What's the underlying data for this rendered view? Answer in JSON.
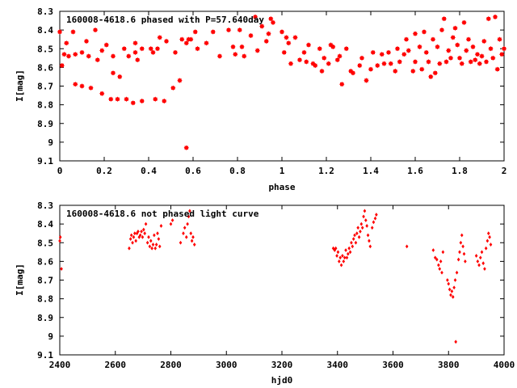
{
  "chart_data": [
    {
      "type": "scatter",
      "title": "160008-4618.6 phased with P=57.640day",
      "xlabel": "phase",
      "ylabel": "I[mag]",
      "xlim": [
        0,
        2
      ],
      "ylim": [
        8.3,
        9.1
      ],
      "y_inverted": true,
      "x_ticks": [
        "0",
        "0.2",
        "0.4",
        "0.6",
        "0.8",
        "1",
        "1.2",
        "1.4",
        "1.6",
        "1.8",
        "2"
      ],
      "y_ticks": [
        "8.3",
        "8.4",
        "8.5",
        "8.6",
        "8.7",
        "8.8",
        "8.9",
        "9",
        "9.1"
      ],
      "grid": false,
      "color": "#ff0000",
      "series": [
        {
          "points": [
            [
              0.0,
              8.41
            ],
            [
              0.01,
              8.59
            ],
            [
              0.02,
              8.53
            ],
            [
              0.03,
              8.47
            ],
            [
              0.04,
              8.54
            ],
            [
              0.06,
              8.41
            ],
            [
              0.07,
              8.53
            ],
            [
              0.07,
              8.69
            ],
            [
              0.1,
              8.7
            ],
            [
              0.1,
              8.52
            ],
            [
              0.12,
              8.46
            ],
            [
              0.13,
              8.54
            ],
            [
              0.14,
              8.71
            ],
            [
              0.16,
              8.4
            ],
            [
              0.17,
              8.56
            ],
            [
              0.19,
              8.51
            ],
            [
              0.19,
              8.74
            ],
            [
              0.21,
              8.48
            ],
            [
              0.23,
              8.77
            ],
            [
              0.24,
              8.54
            ],
            [
              0.24,
              8.63
            ],
            [
              0.26,
              8.77
            ],
            [
              0.27,
              8.65
            ],
            [
              0.29,
              8.5
            ],
            [
              0.3,
              8.77
            ],
            [
              0.31,
              8.54
            ],
            [
              0.33,
              8.79
            ],
            [
              0.34,
              8.47
            ],
            [
              0.34,
              8.52
            ],
            [
              0.35,
              8.56
            ],
            [
              0.37,
              8.78
            ],
            [
              0.37,
              8.5
            ],
            [
              0.41,
              8.5
            ],
            [
              0.42,
              8.52
            ],
            [
              0.43,
              8.77
            ],
            [
              0.44,
              8.5
            ],
            [
              0.45,
              8.44
            ],
            [
              0.47,
              8.78
            ],
            [
              0.48,
              8.46
            ],
            [
              0.51,
              8.71
            ],
            [
              0.52,
              8.52
            ],
            [
              0.54,
              8.67
            ],
            [
              0.55,
              8.45
            ],
            [
              0.57,
              8.47
            ],
            [
              0.57,
              9.03
            ],
            [
              0.58,
              8.45
            ],
            [
              0.59,
              8.45
            ],
            [
              0.61,
              8.41
            ],
            [
              0.62,
              8.5
            ],
            [
              0.66,
              8.47
            ],
            [
              0.69,
              8.41
            ],
            [
              0.72,
              8.54
            ],
            [
              0.76,
              8.4
            ],
            [
              0.78,
              8.49
            ],
            [
              0.79,
              8.53
            ],
            [
              0.81,
              8.4
            ],
            [
              0.82,
              8.49
            ],
            [
              0.83,
              8.54
            ],
            [
              0.86,
              8.43
            ],
            [
              0.88,
              8.33
            ],
            [
              0.89,
              8.51
            ],
            [
              0.91,
              8.38
            ],
            [
              0.93,
              8.46
            ],
            [
              0.94,
              8.42
            ],
            [
              0.95,
              8.34
            ],
            [
              0.96,
              8.36
            ],
            [
              1.0,
              8.41
            ],
            [
              1.01,
              8.52
            ],
            [
              1.02,
              8.44
            ],
            [
              1.03,
              8.47
            ],
            [
              1.04,
              8.58
            ],
            [
              1.06,
              8.44
            ],
            [
              1.08,
              8.56
            ],
            [
              1.1,
              8.52
            ],
            [
              1.11,
              8.57
            ],
            [
              1.12,
              8.48
            ],
            [
              1.14,
              8.58
            ],
            [
              1.15,
              8.59
            ],
            [
              1.17,
              8.5
            ],
            [
              1.18,
              8.62
            ],
            [
              1.19,
              8.55
            ],
            [
              1.21,
              8.58
            ],
            [
              1.22,
              8.48
            ],
            [
              1.23,
              8.49
            ],
            [
              1.25,
              8.56
            ],
            [
              1.26,
              8.54
            ],
            [
              1.27,
              8.69
            ],
            [
              1.29,
              8.5
            ],
            [
              1.31,
              8.62
            ],
            [
              1.32,
              8.63
            ],
            [
              1.35,
              8.59
            ],
            [
              1.36,
              8.55
            ],
            [
              1.38,
              8.67
            ],
            [
              1.4,
              8.61
            ],
            [
              1.41,
              8.52
            ],
            [
              1.43,
              8.59
            ],
            [
              1.45,
              8.53
            ],
            [
              1.46,
              8.58
            ],
            [
              1.48,
              8.52
            ],
            [
              1.49,
              8.58
            ],
            [
              1.51,
              8.62
            ],
            [
              1.52,
              8.5
            ],
            [
              1.53,
              8.57
            ],
            [
              1.55,
              8.53
            ],
            [
              1.56,
              8.45
            ],
            [
              1.57,
              8.51
            ],
            [
              1.59,
              8.62
            ],
            [
              1.6,
              8.57
            ],
            [
              1.6,
              8.42
            ],
            [
              1.62,
              8.49
            ],
            [
              1.63,
              8.61
            ],
            [
              1.64,
              8.41
            ],
            [
              1.65,
              8.52
            ],
            [
              1.66,
              8.57
            ],
            [
              1.67,
              8.65
            ],
            [
              1.68,
              8.45
            ],
            [
              1.69,
              8.63
            ],
            [
              1.7,
              8.49
            ],
            [
              1.71,
              8.58
            ],
            [
              1.72,
              8.4
            ],
            [
              1.73,
              8.34
            ],
            [
              1.74,
              8.57
            ],
            [
              1.75,
              8.51
            ],
            [
              1.76,
              8.55
            ],
            [
              1.77,
              8.44
            ],
            [
              1.78,
              8.39
            ],
            [
              1.79,
              8.48
            ],
            [
              1.8,
              8.55
            ],
            [
              1.81,
              8.58
            ],
            [
              1.82,
              8.36
            ],
            [
              1.83,
              8.51
            ],
            [
              1.84,
              8.45
            ],
            [
              1.85,
              8.57
            ],
            [
              1.86,
              8.49
            ],
            [
              1.87,
              8.56
            ],
            [
              1.88,
              8.53
            ],
            [
              1.89,
              8.58
            ],
            [
              1.9,
              8.54
            ],
            [
              1.91,
              8.46
            ],
            [
              1.92,
              8.57
            ],
            [
              1.93,
              8.34
            ],
            [
              1.94,
              8.5
            ],
            [
              1.95,
              8.55
            ],
            [
              1.96,
              8.33
            ],
            [
              1.97,
              8.61
            ],
            [
              1.98,
              8.45
            ],
            [
              1.99,
              8.53
            ],
            [
              2.0,
              8.5
            ]
          ]
        }
      ]
    },
    {
      "type": "scatter",
      "title": "160008-4618.6 not phased light curve",
      "xlabel": "hjd0",
      "ylabel": "I[mag]",
      "xlim": [
        2400,
        4000
      ],
      "ylim": [
        8.3,
        9.1
      ],
      "y_inverted": true,
      "x_ticks": [
        "2400",
        "2600",
        "2800",
        "3000",
        "3200",
        "3400",
        "3600",
        "3800",
        "4000"
      ],
      "y_ticks": [
        "8.3",
        "8.4",
        "8.5",
        "8.6",
        "8.7",
        "8.8",
        "8.9",
        "9",
        "9.1"
      ],
      "grid": false,
      "color": "#ff0000",
      "series": [
        {
          "points": [
            [
              2400,
              8.49
            ],
            [
              2402,
              8.47
            ],
            [
              2406,
              8.64
            ],
            [
              2650,
              8.53
            ],
            [
              2655,
              8.48
            ],
            [
              2658,
              8.46
            ],
            [
              2662,
              8.5
            ],
            [
              2666,
              8.47
            ],
            [
              2670,
              8.45
            ],
            [
              2674,
              8.49
            ],
            [
              2678,
              8.45
            ],
            [
              2682,
              8.44
            ],
            [
              2686,
              8.47
            ],
            [
              2690,
              8.46
            ],
            [
              2694,
              8.44
            ],
            [
              2698,
              8.47
            ],
            [
              2702,
              8.43
            ],
            [
              2706,
              8.45
            ],
            [
              2710,
              8.4
            ],
            [
              2716,
              8.5
            ],
            [
              2720,
              8.47
            ],
            [
              2724,
              8.52
            ],
            [
              2728,
              8.49
            ],
            [
              2732,
              8.53
            ],
            [
              2736,
              8.51
            ],
            [
              2740,
              8.46
            ],
            [
              2744,
              8.53
            ],
            [
              2748,
              8.51
            ],
            [
              2752,
              8.45
            ],
            [
              2756,
              8.48
            ],
            [
              2760,
              8.52
            ],
            [
              2765,
              8.41
            ],
            [
              2800,
              8.4
            ],
            [
              2806,
              8.38
            ],
            [
              2835,
              8.5
            ],
            [
              2845,
              8.45
            ],
            [
              2850,
              8.42
            ],
            [
              2856,
              8.47
            ],
            [
              2860,
              8.4
            ],
            [
              2864,
              8.36
            ],
            [
              2868,
              8.33
            ],
            [
              2872,
              8.45
            ],
            [
              2876,
              8.49
            ],
            [
              2880,
              8.47
            ],
            [
              2885,
              8.51
            ],
            [
              3385,
              8.53
            ],
            [
              3390,
              8.54
            ],
            [
              3394,
              8.53
            ],
            [
              3398,
              8.57
            ],
            [
              3402,
              8.55
            ],
            [
              3406,
              8.6
            ],
            [
              3410,
              8.58
            ],
            [
              3414,
              8.62
            ],
            [
              3418,
              8.57
            ],
            [
              3422,
              8.6
            ],
            [
              3426,
              8.58
            ],
            [
              3430,
              8.54
            ],
            [
              3434,
              8.58
            ],
            [
              3438,
              8.56
            ],
            [
              3442,
              8.53
            ],
            [
              3446,
              8.55
            ],
            [
              3450,
              8.5
            ],
            [
              3454,
              8.52
            ],
            [
              3458,
              8.48
            ],
            [
              3462,
              8.46
            ],
            [
              3466,
              8.5
            ],
            [
              3470,
              8.45
            ],
            [
              3474,
              8.42
            ],
            [
              3478,
              8.47
            ],
            [
              3482,
              8.44
            ],
            [
              3486,
              8.4
            ],
            [
              3490,
              8.42
            ],
            [
              3494,
              8.36
            ],
            [
              3498,
              8.33
            ],
            [
              3502,
              8.38
            ],
            [
              3506,
              8.41
            ],
            [
              3510,
              8.46
            ],
            [
              3514,
              8.49
            ],
            [
              3518,
              8.52
            ],
            [
              3525,
              8.42
            ],
            [
              3530,
              8.39
            ],
            [
              3536,
              8.37
            ],
            [
              3540,
              8.35
            ],
            [
              3650,
              8.52
            ],
            [
              3745,
              8.54
            ],
            [
              3752,
              8.58
            ],
            [
              3758,
              8.59
            ],
            [
              3764,
              8.62
            ],
            [
              3768,
              8.64
            ],
            [
              3772,
              8.6
            ],
            [
              3776,
              8.66
            ],
            [
              3780,
              8.55
            ],
            [
              3796,
              8.7
            ],
            [
              3800,
              8.72
            ],
            [
              3804,
              8.75
            ],
            [
              3808,
              8.78
            ],
            [
              3812,
              8.76
            ],
            [
              3816,
              8.79
            ],
            [
              3820,
              8.74
            ],
            [
              3824,
              8.7
            ],
            [
              3826,
              9.03
            ],
            [
              3830,
              8.66
            ],
            [
              3836,
              8.59
            ],
            [
              3840,
              8.55
            ],
            [
              3844,
              8.5
            ],
            [
              3848,
              8.46
            ],
            [
              3852,
              8.52
            ],
            [
              3856,
              8.56
            ],
            [
              3860,
              8.6
            ],
            [
              3900,
              8.57
            ],
            [
              3905,
              8.6
            ],
            [
              3910,
              8.62
            ],
            [
              3915,
              8.58
            ],
            [
              3920,
              8.55
            ],
            [
              3925,
              8.61
            ],
            [
              3930,
              8.64
            ],
            [
              3935,
              8.53
            ],
            [
              3940,
              8.49
            ],
            [
              3944,
              8.45
            ],
            [
              3948,
              8.47
            ],
            [
              3952,
              8.51
            ]
          ]
        }
      ]
    }
  ]
}
